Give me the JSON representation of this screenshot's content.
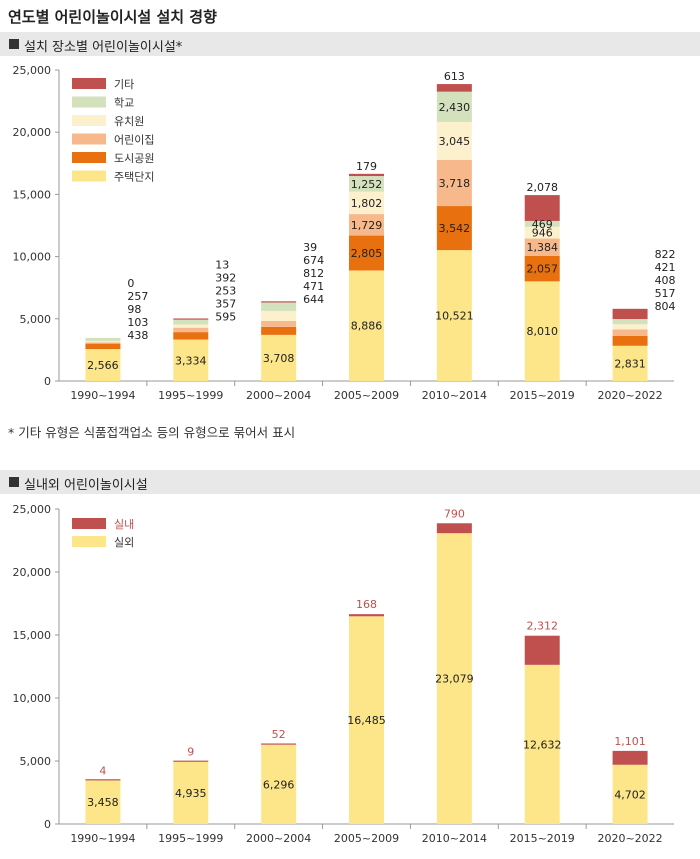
{
  "page": {
    "title": "연도별 어린이놀이시설 설치 경향"
  },
  "section1": {
    "title": "설치 장소별 어린이놀이시설*"
  },
  "footnote": "* 기타 유형은 식품접객업소 등의 유형으로 묶어서 표시",
  "section2": {
    "title": "실내외 어린이놀이시설"
  },
  "chart_data": [
    {
      "type": "bar",
      "stacked": true,
      "categories": [
        "1990~1994",
        "1995~1999",
        "2000~2004",
        "2005~2009",
        "2010~2014",
        "2015~2019",
        "2020~2022"
      ],
      "ylim": [
        0,
        25000
      ],
      "yticks": [
        0,
        5000,
        10000,
        15000,
        20000,
        25000
      ],
      "ytick_labels": [
        "0",
        "5,000",
        "10,000",
        "15,000",
        "20,000",
        "25,000"
      ],
      "legend_position": "top-left",
      "series": [
        {
          "name": "주택단지",
          "color": "#fde68a",
          "values": [
            2566,
            3334,
            3708,
            8886,
            10521,
            8010,
            2831
          ],
          "labels": [
            "2,566",
            "3,334",
            "3,708",
            "8,886",
            "10,521",
            "8,010",
            "2,831"
          ]
        },
        {
          "name": "도시공원",
          "color": "#e8700f",
          "values": [
            438,
            595,
            644,
            2805,
            3542,
            2057,
            804
          ],
          "labels": [
            "438",
            "595",
            "644",
            "2,805",
            "3,542",
            "2,057",
            "804"
          ]
        },
        {
          "name": "어린이집",
          "color": "#f7b98c",
          "values": [
            103,
            357,
            471,
            1729,
            3718,
            1384,
            517
          ],
          "labels": [
            "103",
            "357",
            "471",
            "1,729",
            "3,718",
            "1,384",
            "517"
          ]
        },
        {
          "name": "유치원",
          "color": "#fdf0cc",
          "values": [
            98,
            253,
            812,
            1802,
            3045,
            946,
            408
          ],
          "labels": [
            "98",
            "253",
            "812",
            "1,802",
            "3,045",
            "946",
            "408"
          ]
        },
        {
          "name": "학교",
          "color": "#d3e2bd",
          "values": [
            257,
            392,
            674,
            1252,
            2430,
            469,
            421
          ],
          "labels": [
            "257",
            "392",
            "674",
            "1,252",
            "2,430",
            "469",
            "421"
          ]
        },
        {
          "name": "기타",
          "color": "#c0504d",
          "values": [
            0,
            13,
            39,
            179,
            613,
            2078,
            822
          ],
          "labels": [
            "0",
            "13",
            "39",
            "179",
            "613",
            "2,078",
            "822"
          ]
        }
      ]
    },
    {
      "type": "bar",
      "stacked": true,
      "categories": [
        "1990~1994",
        "1995~1999",
        "2000~2004",
        "2005~2009",
        "2010~2014",
        "2015~2019",
        "2020~2022"
      ],
      "ylim": [
        0,
        25000
      ],
      "yticks": [
        0,
        5000,
        10000,
        15000,
        20000,
        25000
      ],
      "ytick_labels": [
        "0",
        "5,000",
        "10,000",
        "15,000",
        "20,000",
        "25,000"
      ],
      "legend_position": "top-left",
      "series": [
        {
          "name": "실외",
          "color": "#fde68a",
          "values": [
            3458,
            4935,
            6296,
            16485,
            23079,
            12632,
            4702
          ],
          "labels": [
            "3,458",
            "4,935",
            "6,296",
            "16,485",
            "23,079",
            "12,632",
            "4,702"
          ]
        },
        {
          "name": "실내",
          "color": "#c0504d",
          "values": [
            4,
            9,
            52,
            168,
            790,
            2312,
            1101
          ],
          "labels": [
            "4",
            "9",
            "52",
            "168",
            "790",
            "2,312",
            "1,101"
          ]
        }
      ]
    }
  ]
}
